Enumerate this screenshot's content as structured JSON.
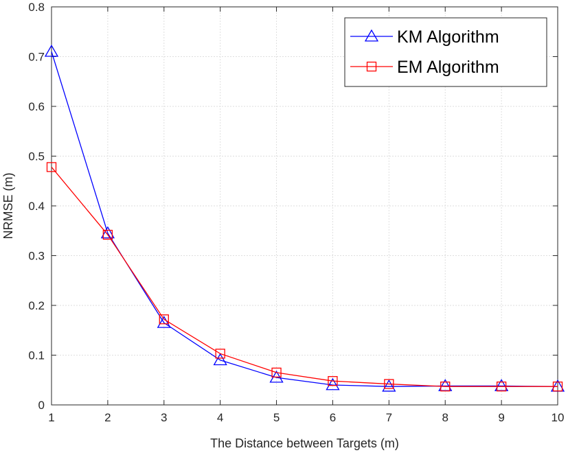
{
  "chart_data": {
    "type": "line",
    "xlabel": "The Distance between Targets (m)",
    "ylabel": "NRMSE (m)",
    "xlim": [
      1,
      10
    ],
    "ylim": [
      0,
      0.8
    ],
    "xticks": [
      1,
      2,
      3,
      4,
      5,
      6,
      7,
      8,
      9,
      10
    ],
    "xtick_labels": [
      "1",
      "2",
      "3",
      "4",
      "5",
      "6",
      "7",
      "8",
      "9",
      "10"
    ],
    "yticks": [
      0,
      0.1,
      0.2,
      0.3,
      0.4,
      0.5,
      0.6,
      0.7,
      0.8
    ],
    "ytick_labels": [
      "0",
      "0.1",
      "0.2",
      "0.3",
      "0.4",
      "0.5",
      "0.6",
      "0.7",
      "0.8"
    ],
    "grid": true,
    "legend_position": "top-right",
    "x": [
      1,
      2,
      3,
      4,
      5,
      6,
      7,
      8,
      9,
      10
    ],
    "series": [
      {
        "name": "KM Algorithm",
        "color": "#0000ff",
        "marker": "triangle",
        "values": [
          0.71,
          0.345,
          0.165,
          0.09,
          0.055,
          0.04,
          0.037,
          0.038,
          0.038,
          0.037
        ]
      },
      {
        "name": "EM Algorithm",
        "color": "#ff0000",
        "marker": "square",
        "values": [
          0.478,
          0.342,
          0.172,
          0.103,
          0.065,
          0.048,
          0.042,
          0.037,
          0.037,
          0.037
        ]
      }
    ]
  }
}
